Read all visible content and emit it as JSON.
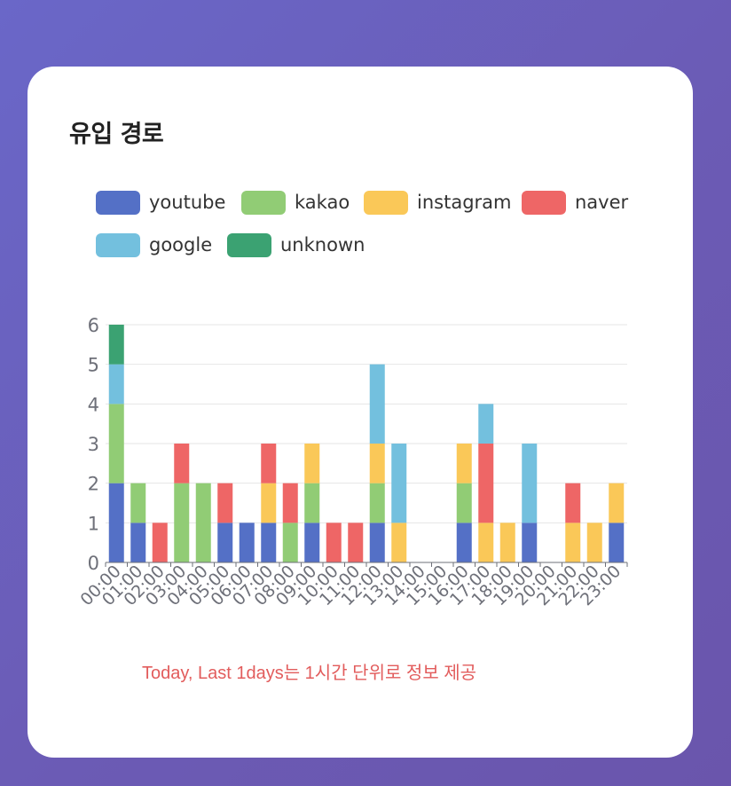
{
  "card": {
    "title": "유입 경로"
  },
  "chart_data": {
    "type": "bar",
    "stacked": true,
    "title": "",
    "xlabel": "",
    "ylabel": "",
    "ylim": [
      0,
      6
    ],
    "yticks": [
      0,
      1,
      2,
      3,
      4,
      5,
      6
    ],
    "grid": true,
    "legend_position": "top",
    "categories": [
      "00:00",
      "01:00",
      "02:00",
      "03:00",
      "04:00",
      "05:00",
      "06:00",
      "07:00",
      "08:00",
      "09:00",
      "10:00",
      "11:00",
      "12:00",
      "13:00",
      "14:00",
      "15:00",
      "16:00",
      "17:00",
      "18:00",
      "19:00",
      "20:00",
      "21:00",
      "22:00",
      "23:00"
    ],
    "series": [
      {
        "name": "youtube",
        "color": "#5470c6",
        "values": [
          2,
          1,
          0,
          0,
          0,
          1,
          1,
          1,
          0,
          1,
          0,
          0,
          1,
          0,
          0,
          0,
          1,
          0,
          0,
          1,
          0,
          0,
          0,
          1
        ]
      },
      {
        "name": "kakao",
        "color": "#91cc75",
        "values": [
          2,
          1,
          0,
          2,
          2,
          0,
          0,
          0,
          1,
          1,
          0,
          0,
          1,
          0,
          0,
          0,
          1,
          0,
          0,
          0,
          0,
          0,
          0,
          0
        ]
      },
      {
        "name": "instagram",
        "color": "#fac858",
        "values": [
          0,
          0,
          0,
          0,
          0,
          0,
          0,
          1,
          0,
          1,
          0,
          0,
          1,
          1,
          0,
          0,
          1,
          1,
          1,
          0,
          0,
          1,
          1,
          1
        ]
      },
      {
        "name": "naver",
        "color": "#ee6666",
        "values": [
          0,
          0,
          1,
          1,
          0,
          1,
          0,
          1,
          1,
          0,
          1,
          1,
          0,
          0,
          0,
          0,
          0,
          2,
          0,
          0,
          0,
          1,
          0,
          0
        ]
      },
      {
        "name": "google",
        "color": "#73c0de",
        "values": [
          1,
          0,
          0,
          0,
          0,
          0,
          0,
          0,
          0,
          0,
          0,
          0,
          2,
          2,
          0,
          0,
          0,
          1,
          0,
          2,
          0,
          0,
          0,
          0
        ]
      },
      {
        "name": "unknown",
        "color": "#3ba272",
        "values": [
          1,
          0,
          0,
          0,
          0,
          0,
          0,
          0,
          0,
          0,
          0,
          0,
          0,
          0,
          0,
          0,
          0,
          0,
          0,
          0,
          0,
          0,
          0,
          0
        ]
      }
    ]
  },
  "footnote": "Today, Last 1days는 1시간 단위로 정보 제공"
}
